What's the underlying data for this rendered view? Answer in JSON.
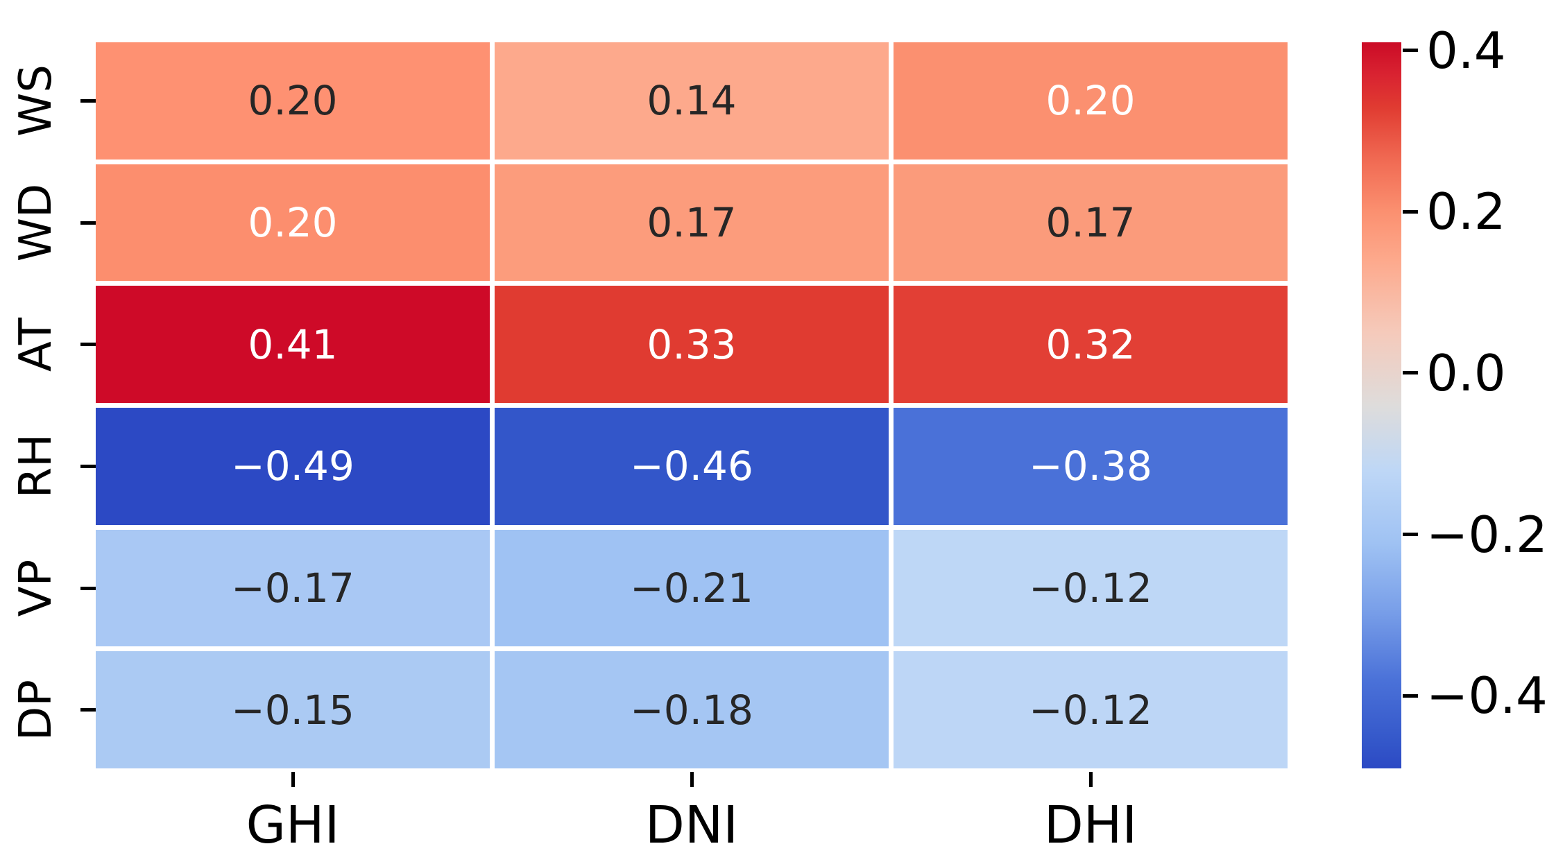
{
  "chart_data": {
    "type": "heatmap",
    "title": "",
    "description": "Correlation heatmap of meteorological variables vs solar irradiance components",
    "rows": [
      "WS",
      "WD",
      "AT",
      "RH",
      "VP",
      "DP"
    ],
    "columns": [
      "GHI",
      "DNI",
      "DHI"
    ],
    "values": [
      [
        0.2,
        0.14,
        0.2
      ],
      [
        0.2,
        0.17,
        0.17
      ],
      [
        0.41,
        0.33,
        0.32
      ],
      [
        -0.49,
        -0.46,
        -0.38
      ],
      [
        -0.17,
        -0.21,
        -0.12
      ],
      [
        -0.15,
        -0.18,
        -0.12
      ]
    ],
    "cell_labels": [
      [
        "0.20",
        "0.14",
        "0.20"
      ],
      [
        "0.20",
        "0.17",
        "0.17"
      ],
      [
        "0.41",
        "0.33",
        "0.32"
      ],
      [
        "−0.49",
        "−0.46",
        "−0.38"
      ],
      [
        "−0.17",
        "−0.21",
        "−0.12"
      ],
      [
        "−0.15",
        "−0.18",
        "−0.12"
      ]
    ],
    "cell_colors": [
      [
        "#fe9172",
        "#fda98c",
        "#fb9070"
      ],
      [
        "#fc8e6e",
        "#fc9c7c",
        "#fb9b7b"
      ],
      [
        "#ce0a28",
        "#e03b31",
        "#e23f35"
      ],
      [
        "#2c49c4",
        "#3356c9",
        "#4a71d8"
      ],
      [
        "#a9c8f4",
        "#9fc2f3",
        "#bed7f6"
      ],
      [
        "#abcaf3",
        "#a5c6f3",
        "#bdd6f6"
      ]
    ],
    "cell_text_colors": [
      [
        "dark",
        "dark",
        "white"
      ],
      [
        "white",
        "dark",
        "dark"
      ],
      [
        "white",
        "white",
        "white"
      ],
      [
        "white",
        "white",
        "white"
      ],
      [
        "dark",
        "dark",
        "dark"
      ],
      [
        "dark",
        "dark",
        "dark"
      ]
    ],
    "annotation_dark_color": "#262626",
    "annotation_white_color": "#ffffff",
    "xlabel": "",
    "ylabel": "",
    "grid_on": false,
    "colormap": "coolwarm",
    "legend_position": "colorbar-right",
    "colorbar": {
      "vmin": -0.49,
      "vmax": 0.41,
      "ticks": [
        {
          "value": 0.4,
          "label": "0.4"
        },
        {
          "value": 0.2,
          "label": "0.2"
        },
        {
          "value": 0.0,
          "label": "0.0"
        },
        {
          "value": -0.2,
          "label": "−0.2"
        },
        {
          "value": -0.4,
          "label": "−0.4"
        }
      ],
      "gradient_stops": [
        {
          "pos": 0.0,
          "color": "#cb0b26"
        },
        {
          "pos": 4.5,
          "color": "#d92331"
        },
        {
          "pos": 8.9,
          "color": "#e03b31"
        },
        {
          "pos": 16.0,
          "color": "#f06952"
        },
        {
          "pos": 23.3,
          "color": "#fb9070"
        },
        {
          "pos": 30.0,
          "color": "#fda98c"
        },
        {
          "pos": 40.0,
          "color": "#f5cabb"
        },
        {
          "pos": 50.0,
          "color": "#dedcdb"
        },
        {
          "pos": 59.0,
          "color": "#bed7f6"
        },
        {
          "pos": 69.0,
          "color": "#9fc2f3"
        },
        {
          "pos": 78.0,
          "color": "#7aa0e9"
        },
        {
          "pos": 88.0,
          "color": "#4a71d8"
        },
        {
          "pos": 96.7,
          "color": "#3356c9"
        },
        {
          "pos": 100.0,
          "color": "#2c49c4"
        }
      ]
    }
  }
}
